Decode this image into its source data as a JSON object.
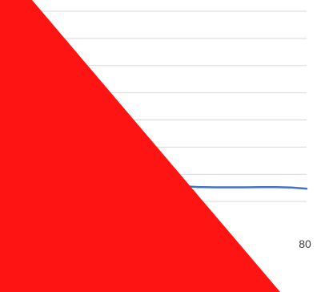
{
  "chart_data": {
    "type": "line",
    "xlabel": "",
    "ylabel": "",
    "x_tick_labels": [
      {
        "value": 80,
        "label": "80"
      }
    ],
    "xlim": [
      40,
      80
    ],
    "ylim": [
      0,
      8
    ],
    "grid": true,
    "gridlines_y": [
      1,
      2,
      3,
      4,
      5,
      6,
      7,
      8
    ],
    "series": [
      {
        "color": "#4472c4",
        "points": [
          {
            "x": 60,
            "y": 1.9
          },
          {
            "x": 62,
            "y": 1.68
          },
          {
            "x": 64,
            "y": 1.56
          },
          {
            "x": 66,
            "y": 1.53
          },
          {
            "x": 68,
            "y": 1.52
          },
          {
            "x": 70,
            "y": 1.52
          },
          {
            "x": 72,
            "y": 1.52
          },
          {
            "x": 74,
            "y": 1.53
          },
          {
            "x": 76,
            "y": 1.53
          },
          {
            "x": 78,
            "y": 1.51
          },
          {
            "x": 80,
            "y": 1.47
          }
        ]
      }
    ],
    "overlay": {
      "shape": "red-triangle",
      "color": "#ff1414"
    }
  }
}
